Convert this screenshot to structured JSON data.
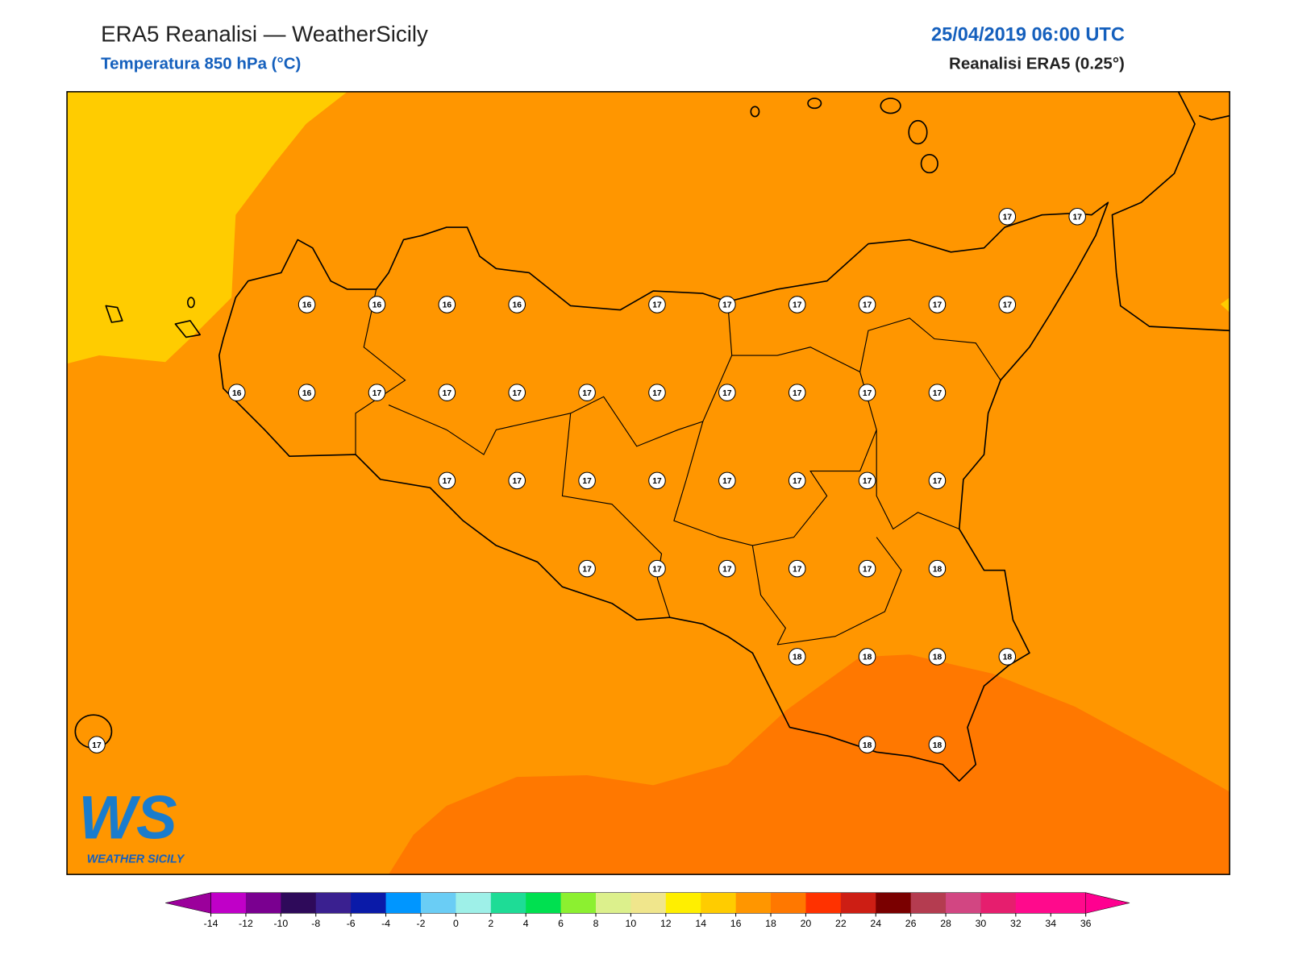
{
  "header": {
    "title": "ERA5 Reanalisi — WeatherSicily",
    "subtitle": "Temperatura 850 hPa (°C)",
    "datetime": "25/04/2019 06:00 UTC",
    "source": "Reanalisi ERA5 (0.25°)"
  },
  "logo": {
    "mark": "WS",
    "name": "WEATHER SICILY"
  },
  "grid_values": [
    [
      null,
      null,
      null,
      null,
      null,
      null,
      null,
      null,
      null,
      null,
      null,
      null,
      null,
      17,
      17
    ],
    [
      null,
      null,
      null,
      16,
      16,
      16,
      16,
      null,
      17,
      17,
      17,
      17,
      17,
      17,
      null
    ],
    [
      null,
      null,
      16,
      16,
      17,
      17,
      17,
      17,
      17,
      17,
      17,
      17,
      17,
      null,
      null
    ],
    [
      null,
      null,
      null,
      null,
      null,
      17,
      17,
      17,
      17,
      17,
      17,
      17,
      17,
      null,
      null
    ],
    [
      null,
      null,
      null,
      null,
      null,
      null,
      null,
      17,
      17,
      17,
      17,
      17,
      18,
      null,
      null
    ],
    [
      null,
      null,
      null,
      null,
      null,
      null,
      null,
      null,
      null,
      null,
      18,
      18,
      18,
      18,
      null
    ],
    [
      17,
      null,
      null,
      null,
      null,
      null,
      null,
      null,
      null,
      null,
      null,
      18,
      18,
      null,
      null
    ]
  ],
  "colorbar": {
    "ticks": [
      -14,
      -12,
      -10,
      -8,
      -6,
      -4,
      -2,
      0,
      2,
      4,
      6,
      8,
      10,
      12,
      14,
      16,
      18,
      20,
      22,
      24,
      26,
      28,
      30,
      32,
      34,
      36
    ],
    "under": "#9b009b",
    "colors": [
      "#c000c8",
      "#7a0090",
      "#2e0a5a",
      "#3a2090",
      "#0a1aa8",
      "#0096ff",
      "#6acdf5",
      "#9ef0e8",
      "#1edc96",
      "#00e050",
      "#8cf030",
      "#dcf08c",
      "#f0e68c",
      "#ffef00",
      "#ffcc00",
      "#ff9600",
      "#ff7800",
      "#ff3200",
      "#cd1e14",
      "#7a0000",
      "#b43c50",
      "#d24682",
      "#e61e6e",
      "#ff0a8c",
      "#ff0a8c"
    ],
    "over": "#ff0090"
  }
}
